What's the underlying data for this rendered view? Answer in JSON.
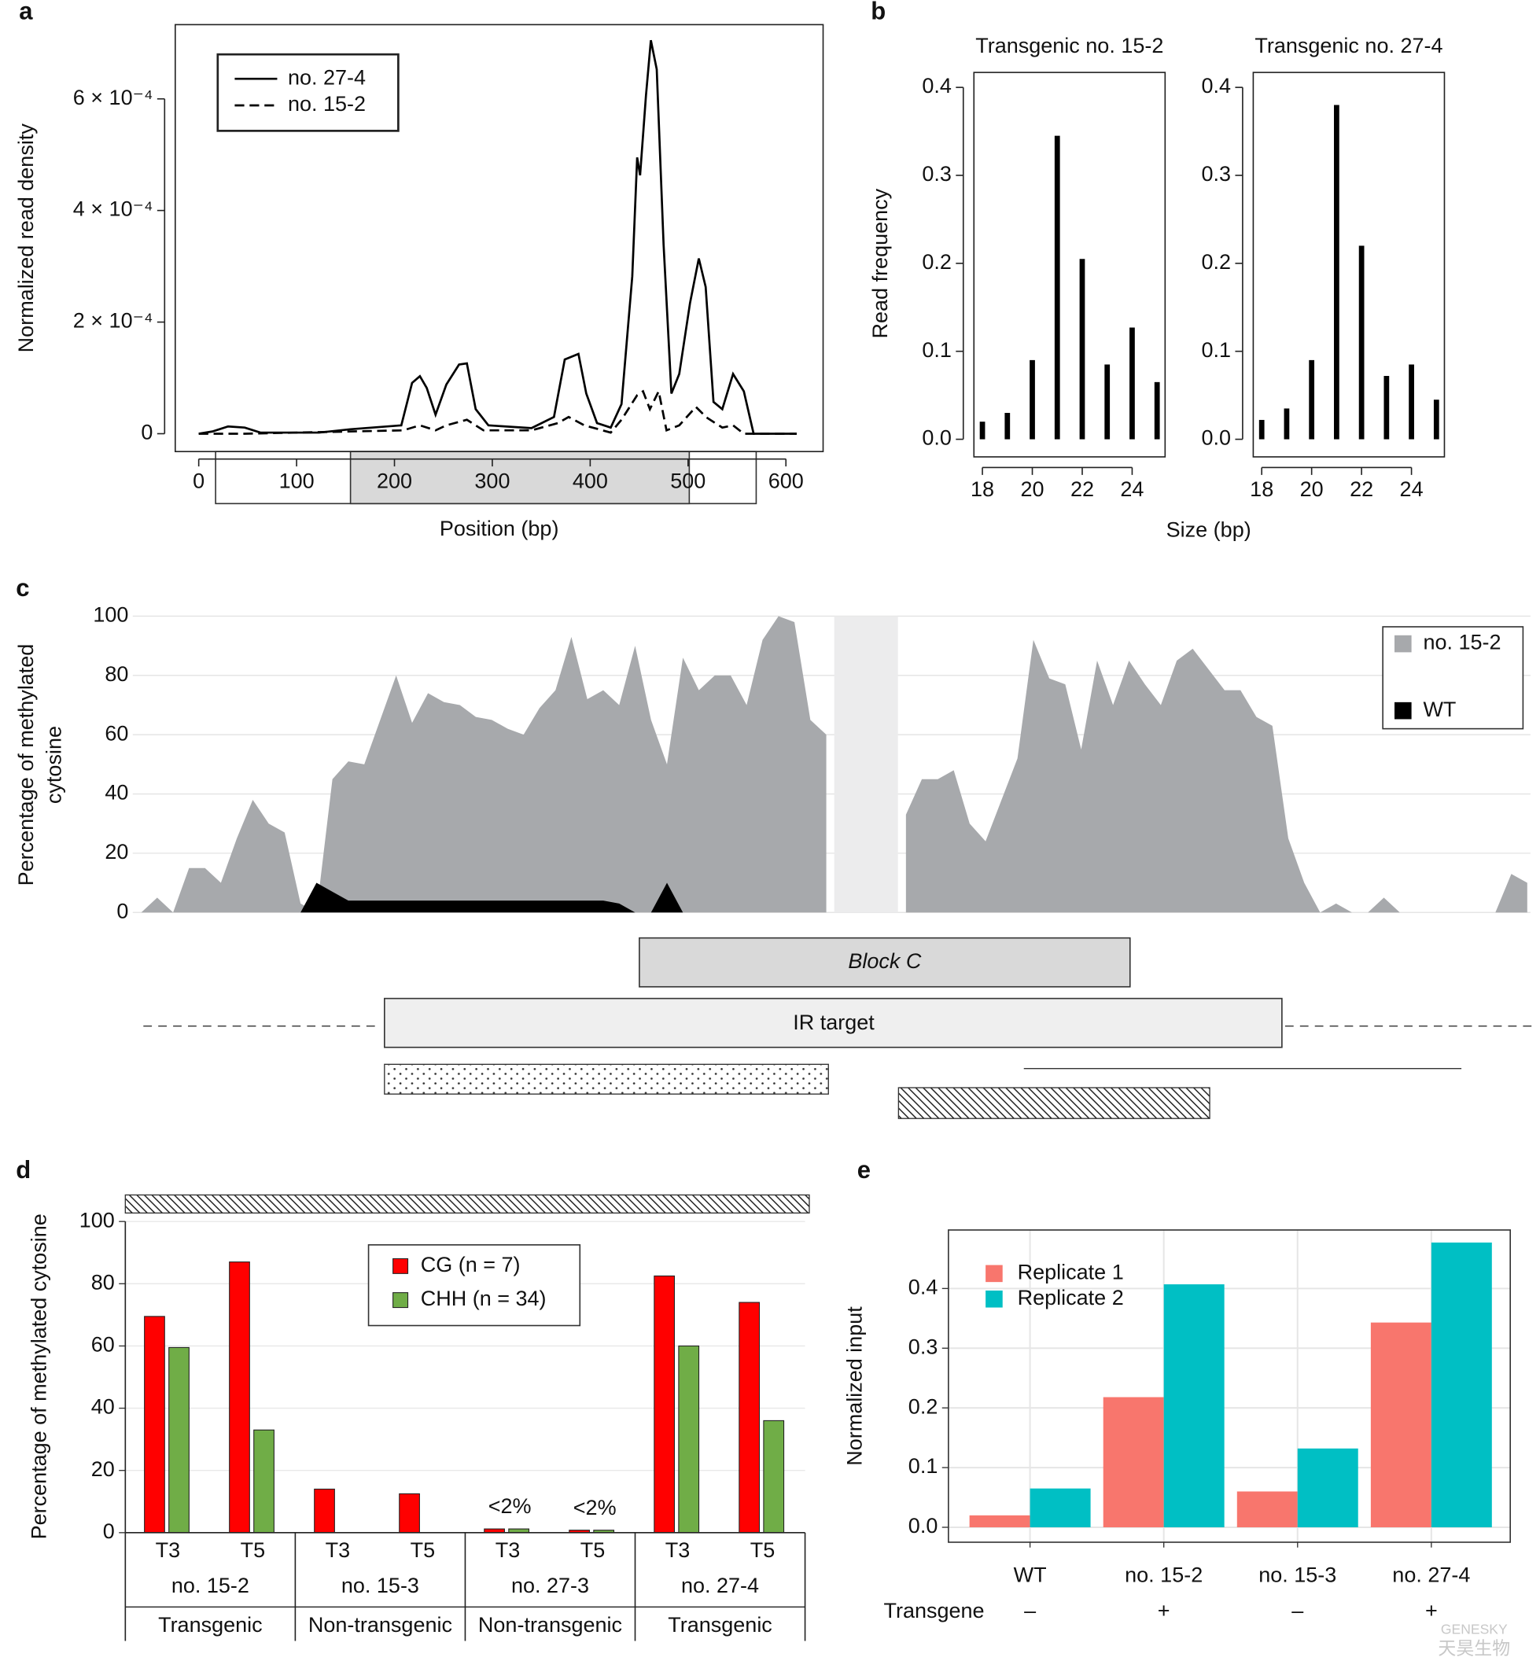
{
  "chart_data": [
    {
      "panel": "a",
      "type": "line",
      "ylabel": "Normalized read density",
      "xlabel": "Position (bp)",
      "legend": "top-left",
      "xlim": [
        -24,
        638
      ],
      "xticks": [
        0,
        100,
        200,
        300,
        400,
        500,
        600
      ],
      "ylim": [
        -3.2e-05,
        0.000733
      ],
      "yticks": [
        0,
        {
          "value": 0.0002,
          "label": "2 × 10⁻⁴"
        },
        {
          "value": 0.0004,
          "label": "4 × 10⁻⁴"
        },
        {
          "value": 0.0006,
          "label": "6 × 10⁻⁴"
        }
      ],
      "series": [
        {
          "name": "no. 27-4",
          "color": "#000000",
          "linestyle": "solid",
          "x": [
            0,
            14,
            30,
            47,
            63,
            123,
            155,
            207,
            218,
            226,
            233,
            242,
            253,
            266,
            274,
            283,
            296,
            340,
            363,
            374,
            388,
            396,
            407,
            421,
            432,
            443,
            448,
            451,
            457,
            462,
            468,
            475,
            483,
            491,
            502,
            511,
            518,
            526,
            535,
            546,
            557,
            567,
            611
          ],
          "values": [
            0,
            4e-06,
            1.3e-05,
            1.1e-05,
            2e-06,
            2e-06,
            8e-06,
            1.5e-05,
            9.1e-05,
            0.000103,
            8.2e-05,
            3.4e-05,
            8.8e-05,
            0.000124,
            0.000126,
            4.4e-05,
            1.5e-05,
            1e-05,
            3e-05,
            0.000133,
            0.000143,
            7.2e-05,
            1.9e-05,
            1.1e-05,
            5.3e-05,
            0.000282,
            0.000495,
            0.000463,
            0.000606,
            0.000705,
            0.000653,
            0.000339,
            7.2e-05,
            0.000107,
            0.000234,
            0.000314,
            0.000263,
            5.7e-05,
            4.4e-05,
            0.000107,
            7.6e-05,
            0,
            0
          ]
        },
        {
          "name": "no. 15-2",
          "color": "#000000",
          "linestyle": "dashed",
          "x": [
            0,
            47,
            209,
            226,
            242,
            253,
            274,
            291,
            340,
            367,
            378,
            394,
            421,
            432,
            448,
            454,
            461,
            470,
            478,
            491,
            508,
            519,
            535,
            546,
            557,
            611
          ],
          "values": [
            0,
            0,
            6e-06,
            1.5e-05,
            6e-06,
            1.5e-05,
            2.5e-05,
            6e-06,
            6e-06,
            1.9e-05,
            3e-05,
            1.5e-05,
            2e-06,
            2.5e-05,
            6.9e-05,
            7.6e-05,
            4.4e-05,
            7.6e-05,
            6e-06,
            1.5e-05,
            4.8e-05,
            2.9e-05,
            1.1e-05,
            1.5e-05,
            0,
            0
          ]
        }
      ]
    },
    {
      "panel": "b",
      "type": "bar",
      "title": "Transgenic no. 15-2",
      "ylabel": "Read frequency",
      "xlabel": "Size (bp)",
      "color": "#000000",
      "x": [
        18,
        19,
        20,
        21,
        22,
        23,
        24,
        25
      ],
      "values": [
        0.02,
        0.03,
        0.09,
        0.345,
        0.205,
        0.085,
        0.127,
        0.065
      ],
      "xlim": [
        17.66,
        25.32
      ],
      "xticks": [
        18,
        20,
        22,
        24
      ],
      "ylim": [
        -0.02,
        0.417
      ],
      "yticks": [
        {
          "value": 0,
          "label": "0.0"
        },
        0.1,
        0.2,
        0.3,
        0.4
      ]
    },
    {
      "type": "bar",
      "title": "Transgenic no. 27-4",
      "color": "#000000",
      "x": [
        18,
        19,
        20,
        21,
        22,
        23,
        24,
        25
      ],
      "values": [
        0.022,
        0.035,
        0.09,
        0.38,
        0.22,
        0.072,
        0.085,
        0.045
      ],
      "xlim": [
        17.66,
        25.32
      ],
      "xticks": [
        18,
        20,
        22,
        24
      ],
      "ylim": [
        -0.02,
        0.417
      ],
      "yticks": [
        {
          "value": 0,
          "label": "0.0"
        },
        0.1,
        0.2,
        0.3,
        0.4
      ]
    },
    {
      "panel": "c",
      "type": "area",
      "ylabel": [
        "Percentage of methylated",
        "cytosine"
      ],
      "grid": true,
      "legend": "top-right",
      "ylim": [
        0,
        100
      ],
      "yticks": [
        0,
        20,
        40,
        60,
        80,
        100
      ],
      "series": [
        {
          "name": "no. 15-2",
          "color": "#a7a9ac",
          "values": [
            0,
            5,
            0,
            15,
            15,
            10,
            25,
            38,
            30,
            27,
            3,
            0,
            45,
            51,
            50,
            65,
            80,
            64,
            74,
            71,
            70,
            66,
            65,
            62,
            60,
            69,
            75,
            93,
            72,
            75,
            70,
            90,
            65,
            50,
            86,
            75,
            80,
            80,
            70,
            92,
            100,
            98,
            65,
            60,
            null,
            null,
            null,
            null,
            33,
            45,
            45,
            48,
            30,
            24,
            38,
            52,
            92,
            79,
            77,
            55,
            85,
            70,
            85,
            77,
            70,
            85,
            89,
            82,
            75,
            75,
            66,
            63,
            25,
            10,
            0,
            3,
            0,
            0,
            5,
            0,
            0,
            0,
            0,
            0,
            0,
            0,
            13,
            10
          ]
        },
        {
          "name": "WT",
          "color": "#000000",
          "values": [
            0,
            0,
            0,
            0,
            0,
            0,
            0,
            0,
            0,
            0,
            0,
            10,
            7,
            4,
            4,
            4,
            4,
            4,
            4,
            4,
            4,
            4,
            4,
            4,
            4,
            4,
            4,
            4,
            4,
            4,
            3,
            0,
            0,
            10,
            0,
            0,
            0,
            0,
            0,
            0,
            0,
            0,
            0,
            0,
            null,
            null,
            null,
            null,
            0,
            0,
            0,
            0,
            0,
            0,
            0,
            0,
            0,
            0,
            0,
            0,
            0,
            0,
            0,
            0,
            0,
            0,
            0,
            0,
            0,
            0,
            0,
            0,
            0,
            0,
            0,
            0,
            0,
            0,
            0,
            0,
            0,
            0,
            0,
            0,
            0,
            0,
            0,
            0
          ]
        }
      ],
      "schematic": {
        "block": "Block C",
        "target": "IR target"
      }
    },
    {
      "panel": "d",
      "type": "grouped_bar",
      "style": "table",
      "ylabel": "Percentage of methylated cytosine",
      "legend": "top",
      "categories": [
        "T3",
        "T5",
        "T3",
        "T5",
        "T3",
        "T5",
        "T3",
        "T5"
      ],
      "groups": [
        {
          "name": "no. 15-2",
          "kind": "Transgenic"
        },
        {
          "name": "no. 15-3",
          "kind": "Non-transgenic"
        },
        {
          "name": "no. 27-3",
          "kind": "Non-transgenic"
        },
        {
          "name": "no. 27-4",
          "kind": "Transgenic"
        }
      ],
      "ylim": [
        0,
        100
      ],
      "yticks": [
        0,
        20,
        40,
        60,
        80,
        100
      ],
      "grid": true,
      "series": [
        {
          "name": "CG (n = 7)",
          "color": "#ff0000",
          "values": [
            69.5,
            87,
            14,
            12.5,
            1.2,
            0.8,
            82.5,
            74
          ],
          "value_labels": [
            null,
            null,
            null,
            null,
            "<2%",
            "<2%",
            null,
            null
          ]
        },
        {
          "name": "CHH (n = 34)",
          "color": "#70ad47",
          "values": [
            59.5,
            33,
            0,
            0,
            1.2,
            0.8,
            60,
            36
          ]
        }
      ]
    },
    {
      "panel": "e",
      "type": "grouped_bar",
      "style": "ggplot",
      "ylabel": "Normalized input",
      "legend": "top-left",
      "categories": [
        "WT",
        "no. 15-2",
        "no. 15-3",
        "no. 27-4"
      ],
      "row_label": "Transgene",
      "row": [
        "–",
        "+",
        "–",
        "+"
      ],
      "ylim": [
        -0.025,
        0.498
      ],
      "yticks": [
        {
          "value": 0,
          "label": "0.0"
        },
        0.1,
        0.2,
        0.3,
        0.4
      ],
      "grid": true,
      "series": [
        {
          "name": "Replicate 1",
          "color": "#f8766d",
          "values": [
            0.02,
            0.218,
            0.06,
            0.343
          ]
        },
        {
          "name": "Replicate 2",
          "color": "#00bfc4",
          "values": [
            0.065,
            0.407,
            0.132,
            0.477
          ]
        }
      ]
    }
  ],
  "watermark": [
    "GENESKY",
    "天昊生物"
  ]
}
